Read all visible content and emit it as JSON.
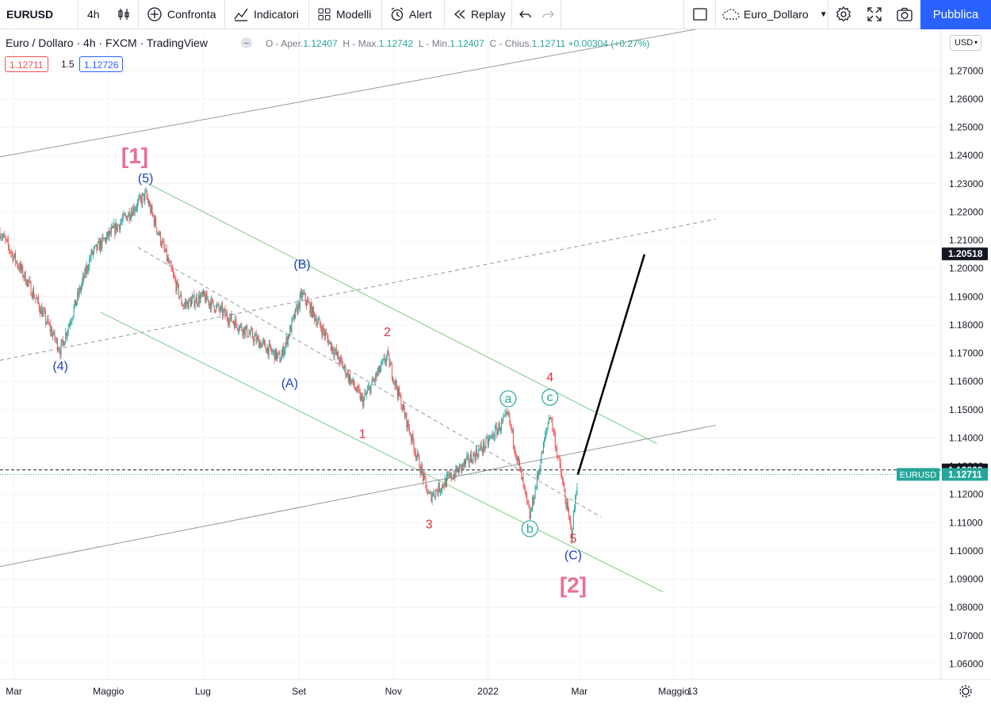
{
  "toolbar": {
    "symbol": "EURUSD",
    "interval": "4h",
    "compare_label": "Confronta",
    "indicators_label": "Indicatori",
    "templates_label": "Modelli",
    "alert_label": "Alert",
    "replay_label": "Replay",
    "layout_name": "Euro_Dollaro",
    "publish_label": "Pubblica"
  },
  "legend": {
    "title": "Euro / Dollaro · 4h · FXCM · TradingView",
    "open_label": "O - Aper.",
    "open": "1.12407",
    "high_label": "H - Max.",
    "high": "1.12742",
    "low_label": "L - Min.",
    "low": "1.12407",
    "close_label": "C - Chius.",
    "close": "1.12711",
    "change": "+0.00304 (+0.27%)",
    "bid": "1.12711",
    "spread": "1.5",
    "ask": "1.12726"
  },
  "currency_selector": "USD",
  "colors": {
    "up": "#26a69a",
    "down": "#ef5350",
    "wave_red": "#e0303a",
    "wave_blue": "#1e3fc8",
    "wave_pink": "#ec6f92",
    "channel_green": "#7fc97f",
    "teal": "#26a69a",
    "publish": "#2962ff"
  },
  "chart_data": {
    "type": "candlestick",
    "symbol": "EURUSD",
    "timeframe": "4h",
    "ylim": [
      1.055,
      1.285
    ],
    "y_ticks": [
      "1.27000",
      "1.26000",
      "1.25000",
      "1.24000",
      "1.23000",
      "1.22000",
      "1.21000",
      "1.20000",
      "1.19000",
      "1.18000",
      "1.17000",
      "1.16000",
      "1.15000",
      "1.14000",
      "1.13000",
      "1.12000",
      "1.11000",
      "1.10000",
      "1.09000",
      "1.08000",
      "1.07000",
      "1.06000"
    ],
    "x_ticks": [
      "Mar",
      "Maggio",
      "Lug",
      "Set",
      "Nov",
      "2022",
      "Mar",
      "Maggio",
      "13"
    ],
    "price_path": [
      {
        "date": "2021-02-20",
        "price": 1.213
      },
      {
        "date": "2021-03-10",
        "price": 1.195
      },
      {
        "date": "2021-03-31",
        "price": 1.171
      },
      {
        "date": "2021-04-20",
        "price": 1.205
      },
      {
        "date": "2021-05-25",
        "price": 1.226
      },
      {
        "date": "2021-06-18",
        "price": 1.187
      },
      {
        "date": "2021-07-01",
        "price": 1.19
      },
      {
        "date": "2021-08-20",
        "price": 1.168
      },
      {
        "date": "2021-09-03",
        "price": 1.191
      },
      {
        "date": "2021-10-12",
        "price": 1.153
      },
      {
        "date": "2021-10-28",
        "price": 1.169
      },
      {
        "date": "2021-11-24",
        "price": 1.119
      },
      {
        "date": "2021-12-31",
        "price": 1.138
      },
      {
        "date": "2022-01-14",
        "price": 1.148
      },
      {
        "date": "2022-01-28",
        "price": 1.112
      },
      {
        "date": "2022-02-10",
        "price": 1.149
      },
      {
        "date": "2022-02-24",
        "price": 1.106
      },
      {
        "date": "2022-02-28",
        "price": 1.127
      }
    ],
    "projection": [
      {
        "date": "2022-02-28",
        "price": 1.127
      },
      {
        "date": "2022-04-12",
        "price": 1.205
      }
    ],
    "price_labels": [
      {
        "value": "1.20518",
        "style": "projection"
      },
      {
        "value": "1.12869",
        "style": "dashed-line"
      },
      {
        "value": "1.12711",
        "style": "last",
        "tag": "EURUSD"
      }
    ],
    "wave_labels": [
      {
        "text": "[1]",
        "date": "2021-05-18",
        "price": 1.24,
        "color": "pink"
      },
      {
        "text": "(5)",
        "date": "2021-05-25",
        "price": 1.2305,
        "color": "blue"
      },
      {
        "text": "(4)",
        "date": "2021-03-31",
        "price": 1.164,
        "color": "blue"
      },
      {
        "text": "(B)",
        "date": "2021-09-03",
        "price": 1.2,
        "color": "blue"
      },
      {
        "text": "(A)",
        "date": "2021-08-26",
        "price": 1.158,
        "color": "blue"
      },
      {
        "text": "2",
        "date": "2021-10-28",
        "price": 1.176,
        "color": "red"
      },
      {
        "text": "1",
        "date": "2021-10-12",
        "price": 1.14,
        "color": "red"
      },
      {
        "text": "3",
        "date": "2021-11-24",
        "price": 1.108,
        "color": "red"
      },
      {
        "text": "a",
        "date": "2022-01-14",
        "price": 1.1525,
        "color": "teal",
        "circle": true
      },
      {
        "text": "b",
        "date": "2022-01-28",
        "price": 1.1065,
        "color": "teal",
        "circle": true
      },
      {
        "text": "c",
        "date": "2022-02-10",
        "price": 1.153,
        "color": "teal",
        "circle": true
      },
      {
        "text": "4",
        "date": "2022-02-10",
        "price": 1.16,
        "color": "red"
      },
      {
        "text": "5",
        "date": "2022-02-25",
        "price": 1.103,
        "color": "red"
      },
      {
        "text": "(C)",
        "date": "2022-02-25",
        "price": 1.097,
        "color": "blue"
      },
      {
        "text": "[2]",
        "date": "2022-02-25",
        "price": 1.088,
        "color": "pink"
      }
    ],
    "lines": [
      {
        "style": "solid",
        "color": "gray",
        "from": {
          "date": "2021-02-20",
          "price": 1.2395
        },
        "to": {
          "date": "2022-05-28",
          "price": 1.286
        }
      },
      {
        "style": "solid",
        "color": "gray",
        "from": {
          "date": "2021-02-20",
          "price": 1.0945
        },
        "to": {
          "date": "2022-05-28",
          "price": 1.1445
        }
      },
      {
        "style": "dashed",
        "color": "gray",
        "from": {
          "date": "2021-02-20",
          "price": 1.1675
        },
        "to": {
          "date": "2022-05-28",
          "price": 1.2175
        }
      },
      {
        "style": "dashed",
        "color": "gray",
        "from": {
          "date": "2021-05-20",
          "price": 1.2075
        },
        "to": {
          "date": "2022-03-15",
          "price": 1.112
        }
      },
      {
        "style": "solid",
        "color": "green",
        "from": {
          "date": "2021-05-25",
          "price": 1.2305
        },
        "to": {
          "date": "2022-04-20",
          "price": 1.138
        }
      },
      {
        "style": "solid",
        "color": "green",
        "from": {
          "date": "2021-04-26",
          "price": 1.1845
        },
        "to": {
          "date": "2022-04-24",
          "price": 1.0855
        }
      },
      {
        "style": "dashed-horizontal",
        "color": "black",
        "price": 1.12869
      },
      {
        "style": "dotted-horizontal",
        "color": "teal",
        "price": 1.12711
      }
    ]
  }
}
